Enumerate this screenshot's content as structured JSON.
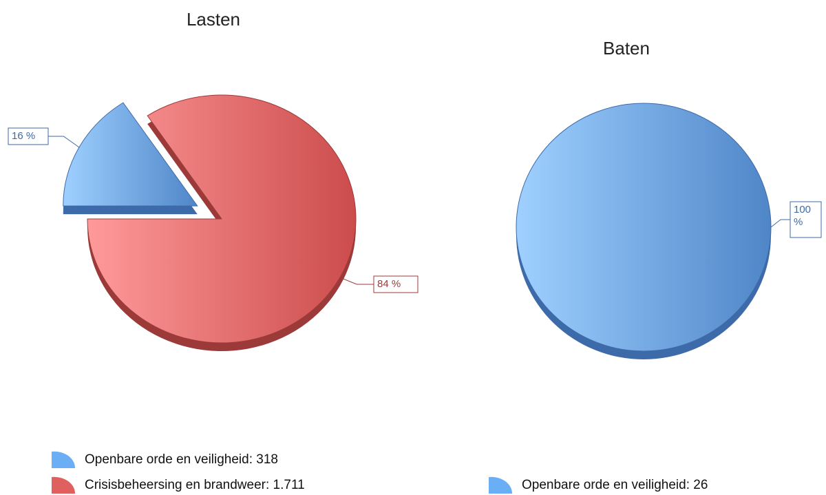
{
  "chart_data": [
    {
      "type": "pie",
      "title": "Lasten",
      "categories": [
        "Openbare orde en veiligheid",
        "Crisisbeheersing en brandweer"
      ],
      "values": [
        318,
        1711
      ],
      "percent_labels": [
        "16 %",
        "84 %"
      ],
      "legend": [
        "Openbare orde en veiligheid: 318",
        "Crisisbeheersing en brandweer: 1.711"
      ],
      "colors": [
        "#6aaef5",
        "#e06060"
      ]
    },
    {
      "type": "pie",
      "title": "Baten",
      "categories": [
        "Openbare orde en veiligheid"
      ],
      "values": [
        26
      ],
      "percent_labels": [
        "100 %"
      ],
      "legend": [
        "Openbare orde en veiligheid: 26"
      ],
      "colors": [
        "#6aaef5"
      ]
    }
  ]
}
